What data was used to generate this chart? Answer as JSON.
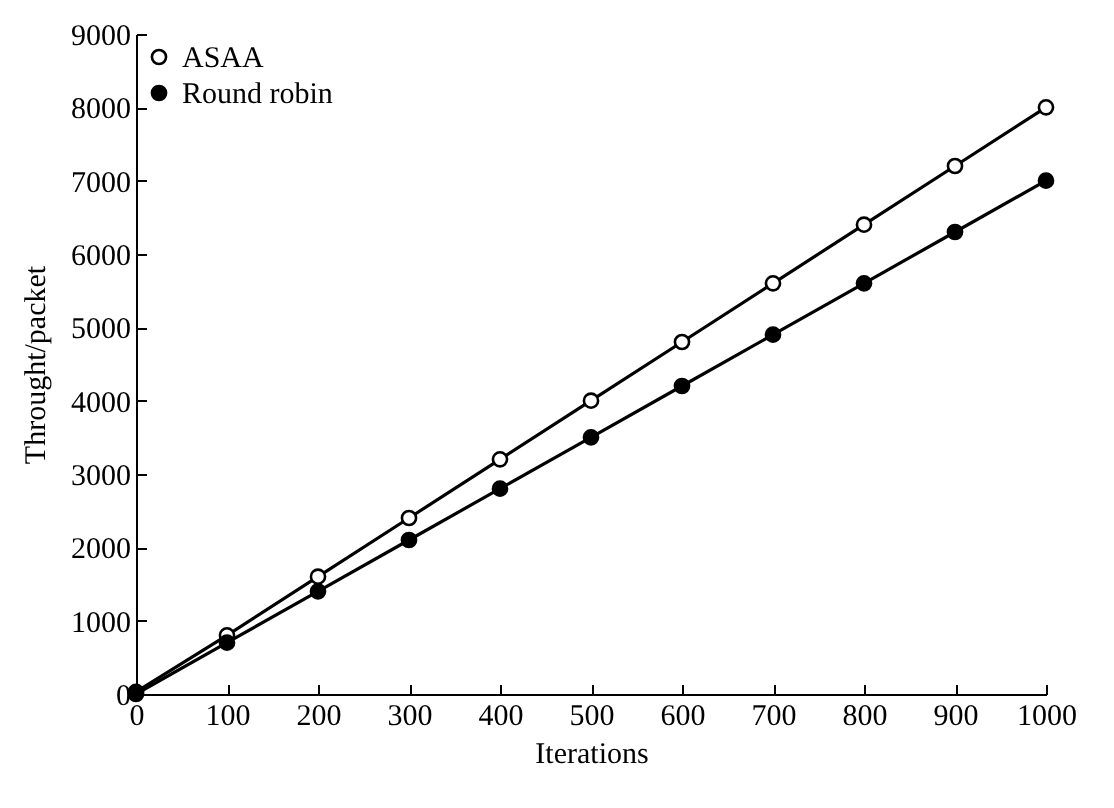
{
  "chart_data": {
    "type": "line",
    "xlabel": "Iterations",
    "ylabel": "Throught/packet",
    "x": [
      0,
      100,
      200,
      300,
      400,
      500,
      600,
      700,
      800,
      900,
      1000
    ],
    "series": [
      {
        "name": "ASAA",
        "color": "#000000",
        "marker": "circle-open",
        "values": [
          30,
          800,
          1600,
          2400,
          3200,
          4000,
          4800,
          5600,
          6400,
          7200,
          8000
        ]
      },
      {
        "name": "Round robin",
        "color": "#000000",
        "marker": "circle",
        "values": [
          0,
          700,
          1400,
          2100,
          2800,
          3500,
          4200,
          4900,
          5600,
          6300,
          7000
        ]
      }
    ],
    "xlim": [
      0,
      1000
    ],
    "xticks": [
      0,
      100,
      200,
      300,
      400,
      500,
      600,
      700,
      800,
      900,
      1000
    ],
    "ylim": [
      0,
      9000
    ],
    "yticks": [
      0,
      1000,
      2000,
      3000,
      4000,
      5000,
      6000,
      7000,
      8000,
      9000
    ],
    "grid": false,
    "legend": "top left",
    "line_style": "solid"
  }
}
